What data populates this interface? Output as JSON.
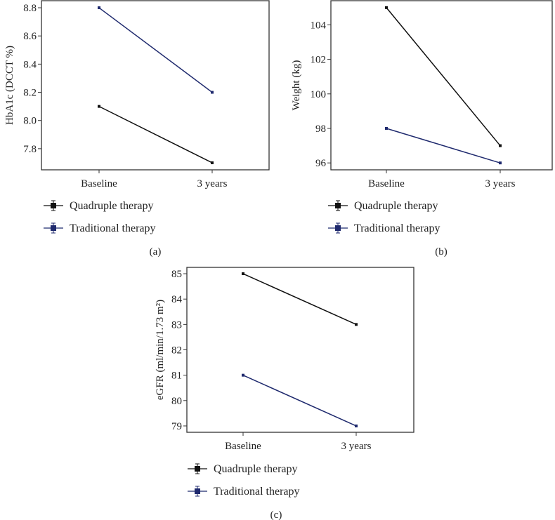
{
  "colors": {
    "quadruple": "#111111",
    "traditional": "#1f2a6e"
  },
  "chart_data": [
    {
      "type": "line",
      "panel_label": "(a)",
      "categories": [
        "Baseline",
        "3 years"
      ],
      "ylabel": "HbA1c (DCCT %)",
      "yticks": [
        "7.8",
        "8.0",
        "8.2",
        "8.4",
        "8.6",
        "8.8"
      ],
      "ylim": [
        7.65,
        8.85
      ],
      "series": [
        {
          "name": "Quadruple therapy",
          "values": [
            8.1,
            7.7
          ]
        },
        {
          "name": "Traditional therapy",
          "values": [
            8.8,
            8.2
          ]
        }
      ],
      "legend": "bottom-left"
    },
    {
      "type": "line",
      "panel_label": "(b)",
      "categories": [
        "Baseline",
        "3 years"
      ],
      "ylabel": "Weight (kg)",
      "yticks": [
        "96",
        "98",
        "100",
        "102",
        "104"
      ],
      "ylim": [
        95.6,
        105.4
      ],
      "series": [
        {
          "name": "Quadruple therapy",
          "values": [
            105,
            97
          ]
        },
        {
          "name": "Traditional therapy",
          "values": [
            98,
            96
          ]
        }
      ],
      "legend": "bottom-left"
    },
    {
      "type": "line",
      "panel_label": "(c)",
      "categories": [
        "Baseline",
        "3 years"
      ],
      "ylabel": "eGFR (ml/min/1.73 m²)",
      "yticks": [
        "79",
        "80",
        "81",
        "82",
        "83",
        "84",
        "85"
      ],
      "ylim": [
        78.75,
        85.25
      ],
      "series": [
        {
          "name": "Quadruple therapy",
          "values": [
            85,
            83
          ]
        },
        {
          "name": "Traditional therapy",
          "values": [
            81,
            79
          ]
        }
      ],
      "legend": "bottom-left"
    }
  ]
}
